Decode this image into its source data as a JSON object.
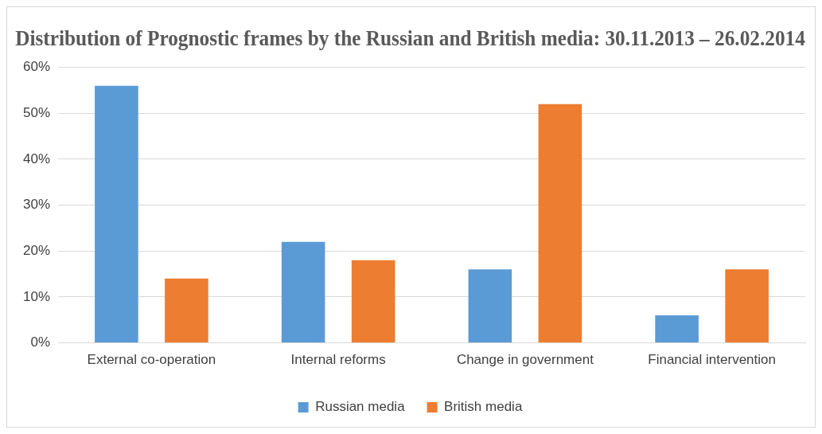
{
  "chart_data": {
    "type": "bar",
    "title": "Distribution of Prognostic frames by the Russian and British media: 30.11.2013 – 26.02.2014",
    "categories": [
      "External co-operation",
      "Internal reforms",
      "Change in government",
      "Financial intervention"
    ],
    "series": [
      {
        "name": "Russian media",
        "color": "#5b9bd5",
        "values": [
          56,
          22,
          16,
          6
        ]
      },
      {
        "name": "British media",
        "color": "#ed7d31",
        "values": [
          14,
          18,
          52,
          16
        ]
      }
    ],
    "ylim": [
      0,
      60
    ],
    "yticks": [
      {
        "value": 0,
        "label": "0%"
      },
      {
        "value": 10,
        "label": "10%"
      },
      {
        "value": 20,
        "label": "20%"
      },
      {
        "value": 30,
        "label": "30%"
      },
      {
        "value": 40,
        "label": "40%"
      },
      {
        "value": 50,
        "label": "50%"
      },
      {
        "value": 60,
        "label": "60%"
      }
    ],
    "grid": "y",
    "legend": "bottom"
  }
}
